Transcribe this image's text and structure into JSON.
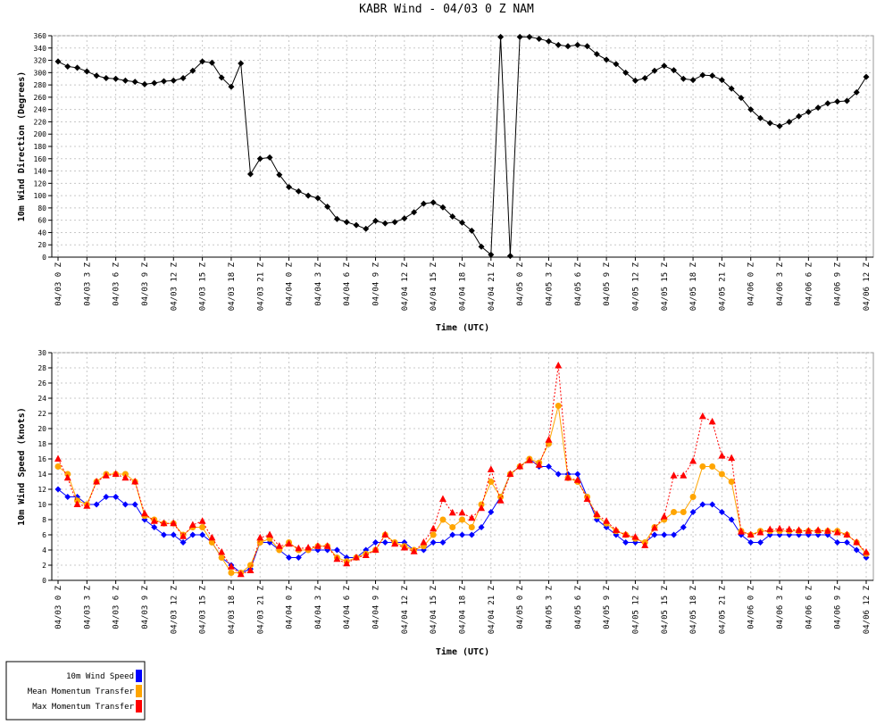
{
  "chart_data": [
    {
      "type": "line",
      "title": "KABR Wind - 04/03 0 Z NAM",
      "ylabel": "10m Wind Direction (Degrees)",
      "xlabel": "Time (UTC)",
      "categories": [
        "04/03 0 Z",
        null,
        null,
        "04/03 3 Z",
        null,
        null,
        "04/03 6 Z",
        null,
        null,
        "04/03 9 Z",
        null,
        null,
        "04/03 12 Z",
        null,
        null,
        "04/03 15 Z",
        null,
        null,
        "04/03 18 Z",
        null,
        null,
        "04/03 21 Z",
        null,
        null,
        "04/04 0 Z",
        null,
        null,
        "04/04 3 Z",
        null,
        null,
        "04/04 6 Z",
        null,
        null,
        "04/04 9 Z",
        null,
        null,
        "04/04 12 Z",
        null,
        null,
        "04/04 15 Z",
        null,
        null,
        "04/04 18 Z",
        null,
        null,
        "04/04 21 Z",
        null,
        null,
        "04/05 0 Z",
        null,
        null,
        "04/05 3 Z",
        null,
        null,
        "04/05 6 Z",
        null,
        null,
        "04/05 9 Z",
        null,
        null,
        "04/05 12 Z",
        null,
        null,
        "04/05 15 Z",
        null,
        null,
        "04/05 18 Z",
        null,
        null,
        "04/05 21 Z",
        null,
        null,
        "04/06 0 Z",
        null,
        null,
        "04/06 3 Z",
        null,
        null,
        "04/06 6 Z",
        null,
        null,
        "04/06 9 Z",
        null,
        null,
        "04/06 12 Z"
      ],
      "color": "#000000",
      "marker": "diamond",
      "values": [
        318,
        310,
        308,
        302,
        295,
        291,
        290,
        287,
        285,
        281,
        283,
        286,
        287,
        291,
        303,
        318,
        316,
        292,
        277,
        315,
        135,
        160,
        162,
        134,
        114,
        107,
        100,
        96,
        82,
        62,
        57,
        52,
        46,
        59,
        55,
        57,
        63,
        73,
        87,
        89,
        81,
        66,
        56,
        43,
        17,
        4,
        358,
        2,
        358,
        358,
        355,
        351,
        345,
        343,
        345,
        343,
        330,
        321,
        314,
        300,
        287,
        291,
        303,
        311,
        304,
        290,
        288,
        296,
        295,
        288,
        274,
        259,
        240,
        226,
        218,
        213,
        220,
        229,
        236,
        243,
        250,
        253,
        254,
        268,
        293
      ],
      "ylim": [
        0,
        360
      ],
      "yticks": [
        0,
        20,
        40,
        60,
        80,
        100,
        120,
        140,
        160,
        180,
        200,
        220,
        240,
        260,
        280,
        300,
        320,
        340,
        360
      ],
      "grid": true
    },
    {
      "type": "line",
      "ylabel": "10m Wind Speed (knots)",
      "xlabel": "Time (UTC)",
      "categories": [
        "04/03 0 Z",
        null,
        null,
        "04/03 3 Z",
        null,
        null,
        "04/03 6 Z",
        null,
        null,
        "04/03 9 Z",
        null,
        null,
        "04/03 12 Z",
        null,
        null,
        "04/03 15 Z",
        null,
        null,
        "04/03 18 Z",
        null,
        null,
        "04/03 21 Z",
        null,
        null,
        "04/04 0 Z",
        null,
        null,
        "04/04 3 Z",
        null,
        null,
        "04/04 6 Z",
        null,
        null,
        "04/04 9 Z",
        null,
        null,
        "04/04 12 Z",
        null,
        null,
        "04/04 15 Z",
        null,
        null,
        "04/04 18 Z",
        null,
        null,
        "04/04 21 Z",
        null,
        null,
        "04/05 0 Z",
        null,
        null,
        "04/05 3 Z",
        null,
        null,
        "04/05 6 Z",
        null,
        null,
        "04/05 9 Z",
        null,
        null,
        "04/05 12 Z",
        null,
        null,
        "04/05 15 Z",
        null,
        null,
        "04/05 18 Z",
        null,
        null,
        "04/05 21 Z",
        null,
        null,
        "04/06 0 Z",
        null,
        null,
        "04/06 3 Z",
        null,
        null,
        "04/06 6 Z",
        null,
        null,
        "04/06 9 Z",
        null,
        null,
        "04/06 12 Z"
      ],
      "series": [
        {
          "name": "10m Wind Speed",
          "color": "#0000ff",
          "marker": "diamond",
          "dashed": false,
          "values": [
            12,
            11,
            11,
            10,
            10,
            11,
            11,
            10,
            10,
            8,
            7,
            6,
            6,
            5,
            6,
            6,
            5,
            3,
            2,
            1,
            1.5,
            5,
            5,
            4,
            3,
            3,
            4,
            4,
            4,
            4,
            3,
            3,
            4,
            5,
            5,
            5,
            5,
            4,
            4,
            5,
            5,
            6,
            6,
            6,
            7,
            9,
            11,
            14,
            15,
            16,
            15,
            15,
            14,
            14,
            14,
            11,
            8,
            7,
            6,
            5,
            5,
            5,
            6,
            6,
            6,
            7,
            9,
            10,
            10,
            9,
            8,
            6,
            5,
            5,
            6,
            6,
            6,
            6,
            6,
            6,
            6,
            5,
            5,
            4,
            3
          ]
        },
        {
          "name": "Mean Momentum Transfer",
          "color": "#ffa500",
          "marker": "circle",
          "dashed": false,
          "values": [
            15,
            14,
            10.5,
            10,
            13,
            14,
            14,
            14,
            13,
            8.5,
            8,
            7.5,
            7.5,
            6,
            7,
            7,
            5,
            3,
            1,
            1,
            2,
            5,
            5.5,
            4,
            5,
            4,
            4,
            4.5,
            4.5,
            3,
            2.5,
            3,
            3.5,
            4,
            6,
            5,
            4.5,
            4,
            4.5,
            6,
            8,
            7,
            8,
            7,
            10,
            13,
            11,
            14,
            15,
            16,
            15.5,
            18,
            23,
            13.5,
            13,
            11,
            8.5,
            7.5,
            6.5,
            6,
            5.5,
            5,
            7,
            8,
            9,
            9,
            11,
            15,
            15,
            14,
            13,
            6.5,
            6,
            6.5,
            6.5,
            6.5,
            6.5,
            6.5,
            6.5,
            6.5,
            6.5,
            6.5,
            6,
            5,
            3.5
          ]
        },
        {
          "name": "Max Momentum Transfer",
          "color": "#ff0000",
          "marker": "triangle",
          "dashed": true,
          "values": [
            16,
            13.5,
            10,
            9.8,
            13,
            13.8,
            14,
            13.5,
            13,
            8.8,
            7.8,
            7.5,
            7.5,
            5.8,
            7.3,
            7.8,
            5.6,
            3.7,
            1.8,
            0.8,
            1.3,
            5.6,
            6,
            4.5,
            4.8,
            4.2,
            4.3,
            4.5,
            4.5,
            2.8,
            2.2,
            3,
            3.3,
            4,
            6,
            4.8,
            4.3,
            3.8,
            5,
            6.8,
            10.7,
            8.9,
            8.9,
            8.2,
            9.5,
            14.6,
            10.5,
            14,
            15,
            15.8,
            15.2,
            18.5,
            28.3,
            13.5,
            13.2,
            10.7,
            8.7,
            7.8,
            6.6,
            6,
            5.7,
            4.6,
            6.9,
            8.4,
            13.8,
            13.8,
            15.7,
            21.6,
            20.9,
            16.4,
            16.1,
            6.4,
            6,
            6.3,
            6.7,
            6.8,
            6.7,
            6.6,
            6.5,
            6.6,
            6.5,
            6.3,
            6,
            5,
            3.7
          ]
        }
      ],
      "ylim": [
        0,
        30
      ],
      "yticks": [
        0,
        2,
        4,
        6,
        8,
        10,
        12,
        14,
        16,
        18,
        20,
        22,
        24,
        26,
        28,
        30
      ],
      "grid": true,
      "legend": "bottom-left"
    }
  ]
}
